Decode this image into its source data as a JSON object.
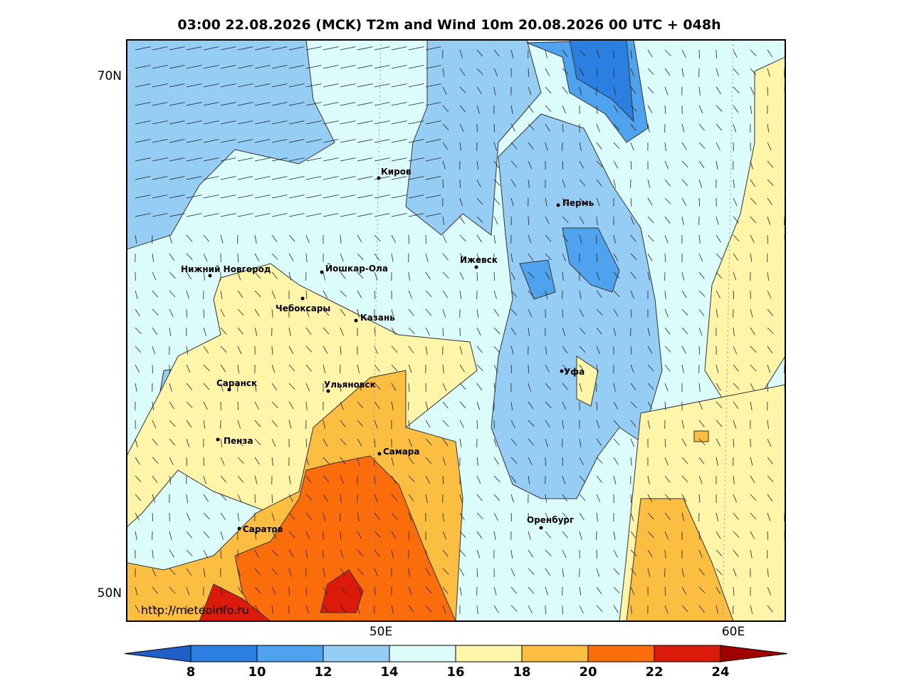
{
  "title": "03:00 22.08.2026 (MCK) T2m and Wind 10m 20.08.2026 00 UTC + 048h",
  "lat_labels": [
    "70N",
    "50N"
  ],
  "lon_labels": [
    "50E",
    "60E"
  ],
  "cities": [
    "Киров",
    "Пермь",
    "Нижний Новгород",
    "Йошкар-Ола",
    "Ижевск",
    "Чебоксары",
    "Казань",
    "Уфа",
    "Саранск",
    "Ульяновск",
    "Пенза",
    "Самара",
    "Оренбург",
    "Саратов"
  ],
  "watermark": "http://meteoinfo.ru",
  "colorbar": {
    "ticks": [
      8,
      10,
      12,
      14,
      16,
      18,
      20,
      22,
      24
    ],
    "colors": [
      "#1f5fc8",
      "#2b7fe0",
      "#4fa3ee",
      "#96cdf5",
      "#dcfcfc",
      "#fff5a8",
      "#fbbe40",
      "#fb6c0a",
      "#dc1a0a",
      "#a00000"
    ]
  }
}
